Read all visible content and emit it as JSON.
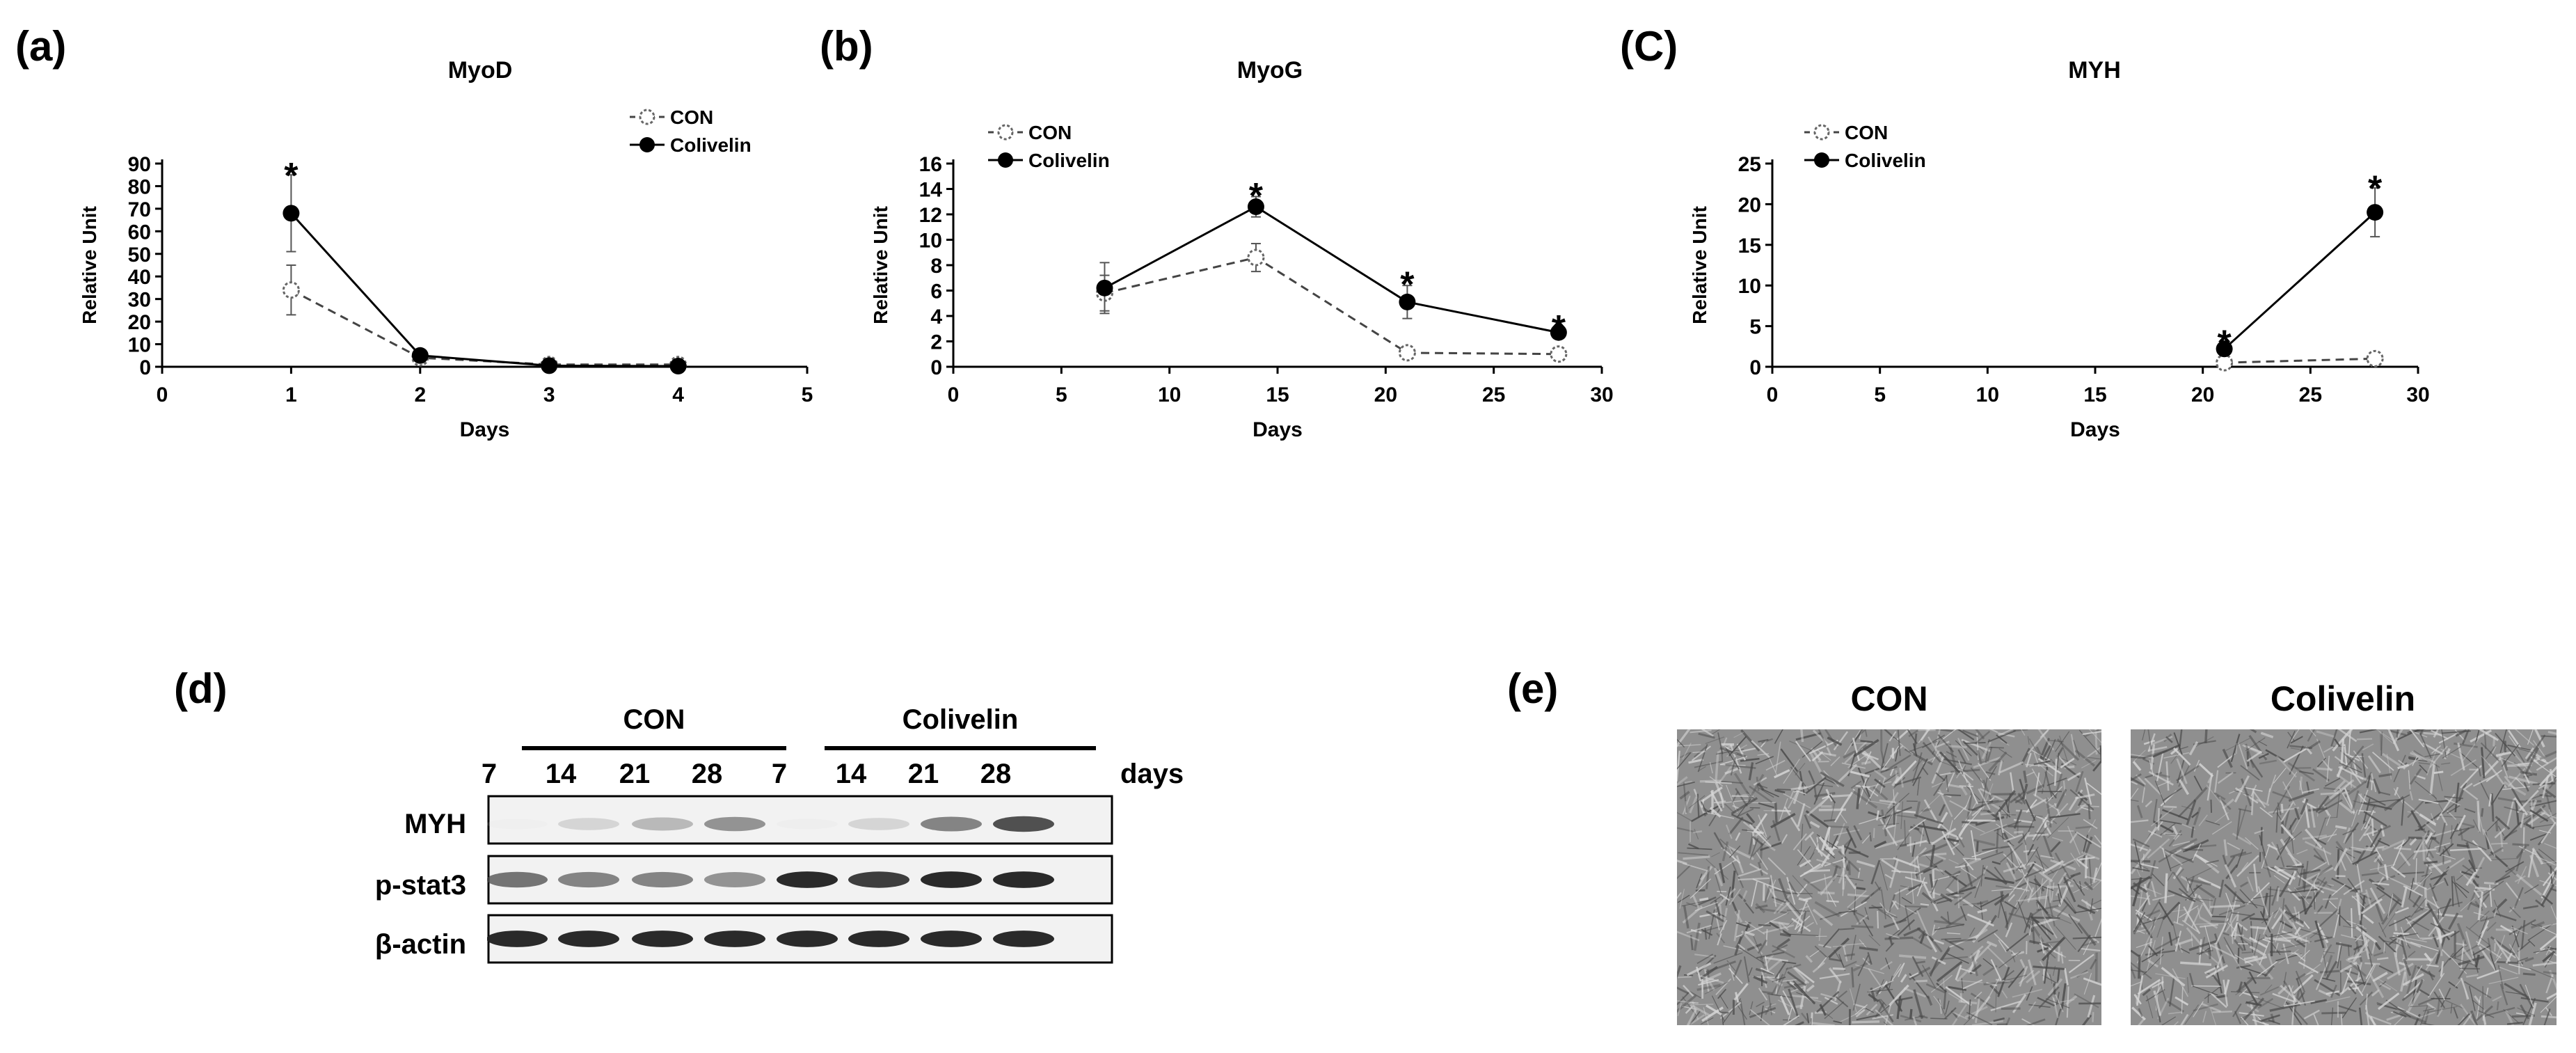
{
  "panels": {
    "a": "(a)",
    "b": "(b)",
    "c": "(C)",
    "d": "(d)",
    "e": "(e)"
  },
  "chart_data": [
    {
      "type": "line",
      "title": "MyoD",
      "xlabel": "Days",
      "ylabel": "Relative Unit",
      "xlim": [
        0,
        5
      ],
      "ylim": [
        0,
        90
      ],
      "xticks": [
        "0",
        "1",
        "2",
        "3",
        "4",
        "5"
      ],
      "yticks": [
        "0",
        "10",
        "20",
        "30",
        "40",
        "50",
        "60",
        "70",
        "80",
        "90"
      ],
      "legend": "top-right",
      "series": [
        {
          "name": "CON",
          "style": "dashed",
          "marker": "open",
          "x": [
            1,
            2,
            3,
            4
          ],
          "y": [
            34,
            4,
            1,
            1
          ],
          "err": [
            11,
            1,
            0.5,
            0.5
          ]
        },
        {
          "name": "Colivelin",
          "style": "solid",
          "marker": "filled",
          "x": [
            1,
            2,
            3,
            4
          ],
          "y": [
            68,
            5,
            0.5,
            0.3
          ],
          "err": [
            17,
            1,
            0.5,
            0.3
          ]
        }
      ],
      "annotations": [
        {
          "x": 1,
          "y": 86,
          "text": "*"
        }
      ]
    },
    {
      "type": "line",
      "title": "MyoG",
      "xlabel": "Days",
      "ylabel": "Relative Unit",
      "xlim": [
        0,
        30
      ],
      "ylim": [
        0,
        16
      ],
      "xticks": [
        "0",
        "5",
        "10",
        "15",
        "20",
        "25",
        "30"
      ],
      "yticks": [
        "0",
        "2",
        "4",
        "6",
        "8",
        "10",
        "12",
        "14",
        "16"
      ],
      "legend": "top-left",
      "series": [
        {
          "name": "CON",
          "style": "dashed",
          "marker": "open",
          "x": [
            7,
            14,
            21,
            28
          ],
          "y": [
            5.8,
            8.6,
            1.1,
            1.0
          ],
          "err": [
            1.4,
            1.1,
            0.3,
            0.4
          ]
        },
        {
          "name": "Colivelin",
          "style": "solid",
          "marker": "filled",
          "x": [
            7,
            14,
            21,
            28
          ],
          "y": [
            6.2,
            12.6,
            5.1,
            2.7
          ],
          "err": [
            2.0,
            0.8,
            1.3,
            0.3
          ]
        }
      ],
      "annotations": [
        {
          "x": 14,
          "y": 13.7,
          "text": "*"
        },
        {
          "x": 21,
          "y": 6.7,
          "text": "*"
        },
        {
          "x": 28,
          "y": 3.3,
          "text": "*"
        }
      ]
    },
    {
      "type": "line",
      "title": "MYH",
      "xlabel": "Days",
      "ylabel": "Relative Unit",
      "xlim": [
        0,
        30
      ],
      "ylim": [
        0,
        25
      ],
      "xticks": [
        "0",
        "5",
        "10",
        "15",
        "20",
        "25",
        "30"
      ],
      "yticks": [
        "0",
        "5",
        "10",
        "15",
        "20",
        "25"
      ],
      "legend": "top-left",
      "series": [
        {
          "name": "CON",
          "style": "dashed",
          "marker": "open",
          "x": [
            21,
            28
          ],
          "y": [
            0.5,
            1.0
          ],
          "err": [
            0.2,
            0.3
          ]
        },
        {
          "name": "Colivelin",
          "style": "solid",
          "marker": "filled",
          "x": [
            21,
            28
          ],
          "y": [
            2.2,
            19.0
          ],
          "err": [
            0.4,
            3.0
          ]
        }
      ],
      "annotations": [
        {
          "x": 21,
          "y": 3.3,
          "text": "*"
        },
        {
          "x": 28,
          "y": 22.3,
          "text": "*"
        }
      ]
    }
  ],
  "western_blot": {
    "groups": [
      "CON",
      "Colivelin"
    ],
    "days": [
      "7",
      "14",
      "21",
      "28",
      "7",
      "14",
      "21",
      "28"
    ],
    "days_label": "days",
    "rows": [
      {
        "label": "MYH",
        "intensity": [
          0.05,
          0.35,
          0.5,
          0.65,
          0.1,
          0.35,
          0.7,
          0.85
        ]
      },
      {
        "label": "p-stat3",
        "intensity": [
          0.75,
          0.7,
          0.7,
          0.65,
          0.95,
          0.9,
          0.95,
          0.95
        ]
      },
      {
        "label": "β-actin",
        "intensity": [
          0.95,
          0.95,
          0.95,
          0.95,
          0.95,
          0.95,
          0.95,
          0.95
        ]
      }
    ]
  },
  "micrographs": {
    "titles": [
      "CON",
      "Colivelin"
    ]
  }
}
